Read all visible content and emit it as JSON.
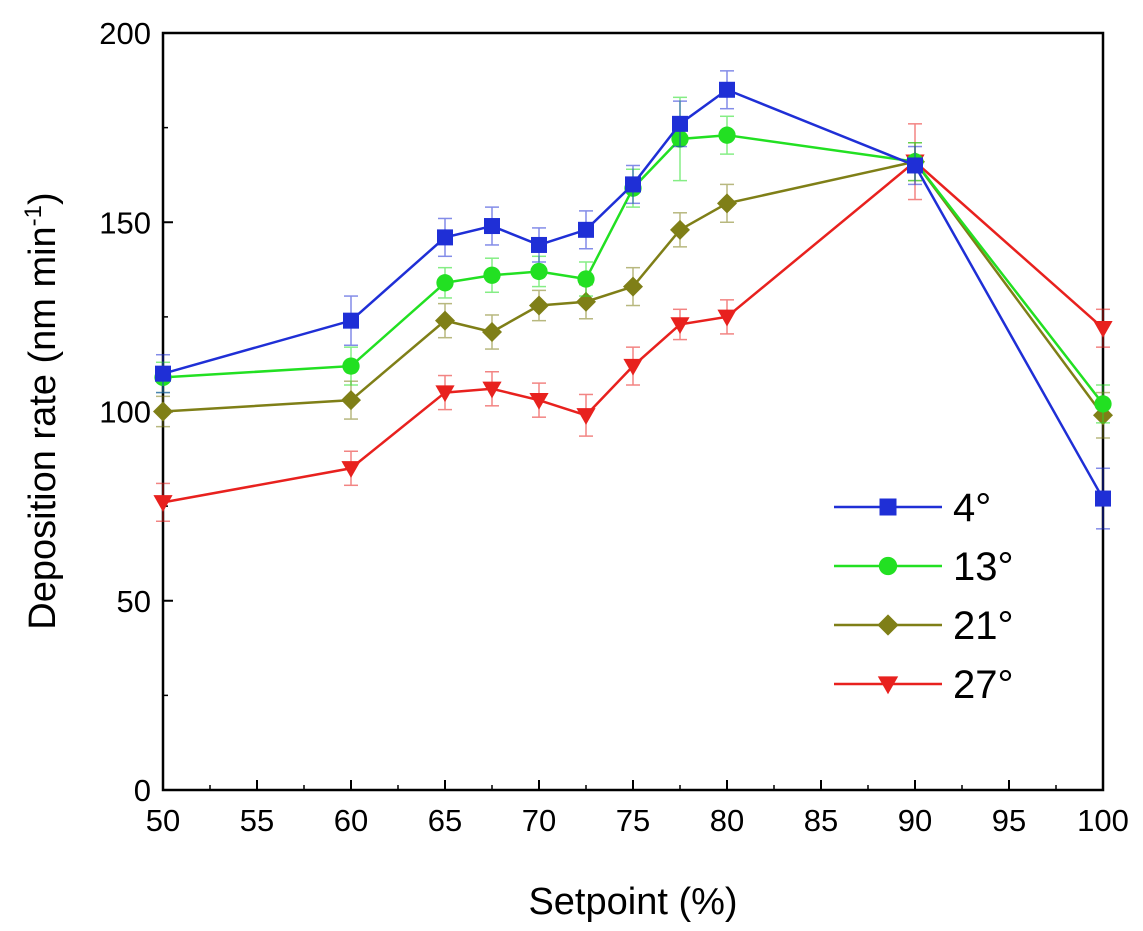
{
  "chart_data": {
    "type": "line",
    "xlabel": "Setpoint (%)",
    "ylabel_main": "Deposition rate (nm min",
    "ylabel_sup": "-1",
    "ylabel_close": ")",
    "xlim": [
      50,
      100
    ],
    "ylim": [
      0,
      200
    ],
    "x_ticks": [
      50,
      55,
      60,
      65,
      70,
      75,
      80,
      85,
      90,
      95,
      100
    ],
    "y_ticks": [
      0,
      50,
      100,
      150,
      200
    ],
    "grid": false,
    "legend_position": "lower-right",
    "x": [
      50,
      60,
      65,
      67.5,
      70,
      72.5,
      75,
      77.5,
      80,
      90,
      100
    ],
    "series": [
      {
        "name": "4°",
        "color": "#1f2fd6",
        "marker": "square",
        "values": [
          110,
          124,
          146,
          149,
          144,
          148,
          160,
          176,
          185,
          165,
          77
        ],
        "errors": [
          5,
          6.5,
          5,
          5,
          4.5,
          5,
          5,
          6,
          5,
          5,
          8
        ]
      },
      {
        "name": "13°",
        "color": "#22e022",
        "marker": "circle",
        "values": [
          109,
          112,
          134,
          136,
          137,
          135,
          159,
          172,
          173,
          166,
          102
        ],
        "errors": [
          4,
          5,
          4,
          4.5,
          4,
          4.5,
          5,
          11,
          5,
          5,
          5
        ]
      },
      {
        "name": "21°",
        "color": "#7f7f17",
        "marker": "diamond",
        "values": [
          100,
          103,
          124,
          121,
          128,
          129,
          133,
          148,
          155,
          166,
          99
        ],
        "errors": [
          4,
          5,
          4.5,
          4.5,
          4,
          4.5,
          5,
          4.5,
          5,
          5,
          6
        ]
      },
      {
        "name": "27°",
        "color": "#e8211e",
        "marker": "triangle-down",
        "values": [
          76,
          85,
          105,
          106,
          103,
          99,
          112,
          123,
          125,
          166,
          122
        ],
        "errors": [
          5,
          4.5,
          4.5,
          4.5,
          4.5,
          5.5,
          5,
          4,
          4.5,
          10,
          5
        ]
      }
    ]
  }
}
